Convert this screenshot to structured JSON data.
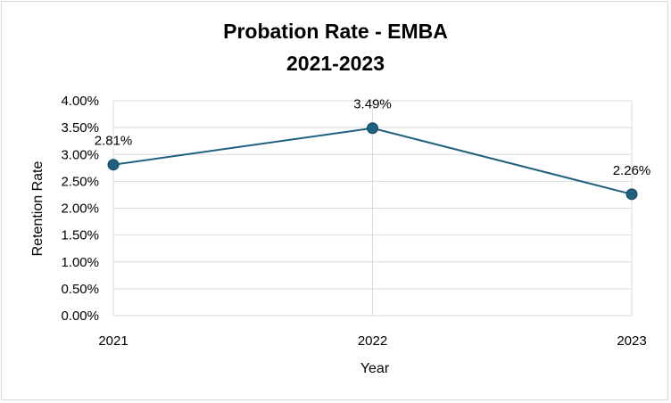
{
  "chart_data": {
    "type": "line",
    "title": "Probation Rate - EMBA",
    "subtitle": "2021-2023",
    "xlabel": "Year",
    "ylabel": "Retention Rate",
    "categories": [
      "2021",
      "2022",
      "2023"
    ],
    "series": [
      {
        "name": "Probation Rate",
        "values": [
          2.81,
          3.49,
          2.26
        ],
        "labels": [
          "2.81%",
          "3.49%",
          "2.26%"
        ]
      }
    ],
    "ylim": [
      0,
      4
    ],
    "yticks": [
      {
        "value": 0,
        "label": "0.00%"
      },
      {
        "value": 0.5,
        "label": "0.50%"
      },
      {
        "value": 1,
        "label": "1.00%"
      },
      {
        "value": 1.5,
        "label": "1.50%"
      },
      {
        "value": 2,
        "label": "2.00%"
      },
      {
        "value": 2.5,
        "label": "2.50%"
      },
      {
        "value": 3,
        "label": "3.00%"
      },
      {
        "value": 3.5,
        "label": "3.50%"
      },
      {
        "value": 4,
        "label": "4.00%"
      }
    ],
    "grid": true,
    "legend": "none",
    "colors": {
      "line": "#1f5f7f",
      "marker": "#1f5f7f",
      "grid": "#d9d9d9"
    }
  }
}
